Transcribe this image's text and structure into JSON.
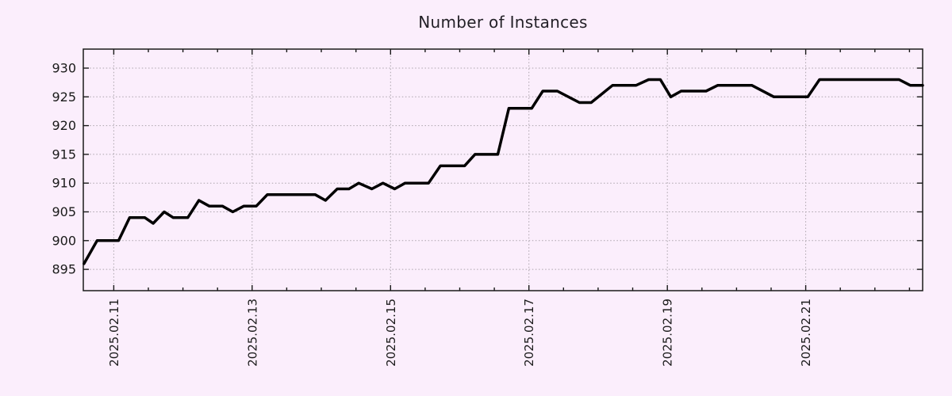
{
  "chart_data": {
    "type": "line",
    "title": "Number of Instances",
    "xlabel": "",
    "ylabel": "",
    "background": "#fbeefc",
    "line_color": "#000000",
    "grid_color": "#aba4ab",
    "grid": true,
    "legend": "none",
    "y_ticks": [
      895,
      900,
      905,
      910,
      915,
      920,
      925,
      930
    ],
    "ylim": [
      891.3,
      933.3
    ],
    "x_ticks": [
      {
        "label": "2025.02.11",
        "day": 0
      },
      {
        "label": "2025.02.13",
        "day": 2
      },
      {
        "label": "2025.02.15",
        "day": 4
      },
      {
        "label": "2025.02.17",
        "day": 6
      },
      {
        "label": "2025.02.19",
        "day": 8
      },
      {
        "label": "2025.02.21",
        "day": 10
      }
    ],
    "x_minor_interval_days": 0.5,
    "xlim_days": [
      -0.44,
      11.69
    ],
    "points": [
      [
        -0.43,
        896
      ],
      [
        -0.24,
        900
      ],
      [
        0.07,
        900
      ],
      [
        0.23,
        904
      ],
      [
        0.45,
        904
      ],
      [
        0.57,
        903
      ],
      [
        0.73,
        905
      ],
      [
        0.86,
        904
      ],
      [
        1.07,
        904
      ],
      [
        1.23,
        907
      ],
      [
        1.38,
        906
      ],
      [
        1.57,
        906
      ],
      [
        1.72,
        905
      ],
      [
        1.88,
        906
      ],
      [
        2.06,
        906
      ],
      [
        2.22,
        908
      ],
      [
        2.91,
        908
      ],
      [
        3.06,
        907
      ],
      [
        3.23,
        909
      ],
      [
        3.4,
        909
      ],
      [
        3.54,
        910
      ],
      [
        3.73,
        909
      ],
      [
        3.89,
        910
      ],
      [
        4.06,
        909
      ],
      [
        4.21,
        910
      ],
      [
        4.55,
        910
      ],
      [
        4.72,
        913
      ],
      [
        5.07,
        913
      ],
      [
        5.22,
        915
      ],
      [
        5.55,
        915
      ],
      [
        5.71,
        923
      ],
      [
        6.04,
        923
      ],
      [
        6.2,
        926
      ],
      [
        6.41,
        926
      ],
      [
        6.73,
        924
      ],
      [
        6.9,
        924
      ],
      [
        7.21,
        927
      ],
      [
        7.55,
        927
      ],
      [
        7.73,
        928
      ],
      [
        7.9,
        928
      ],
      [
        8.05,
        925
      ],
      [
        8.2,
        926
      ],
      [
        8.56,
        926
      ],
      [
        8.73,
        927
      ],
      [
        9.22,
        927
      ],
      [
        9.54,
        925
      ],
      [
        10.03,
        925
      ],
      [
        10.2,
        928
      ],
      [
        11.35,
        928
      ],
      [
        11.51,
        927
      ],
      [
        11.69,
        927
      ]
    ]
  }
}
